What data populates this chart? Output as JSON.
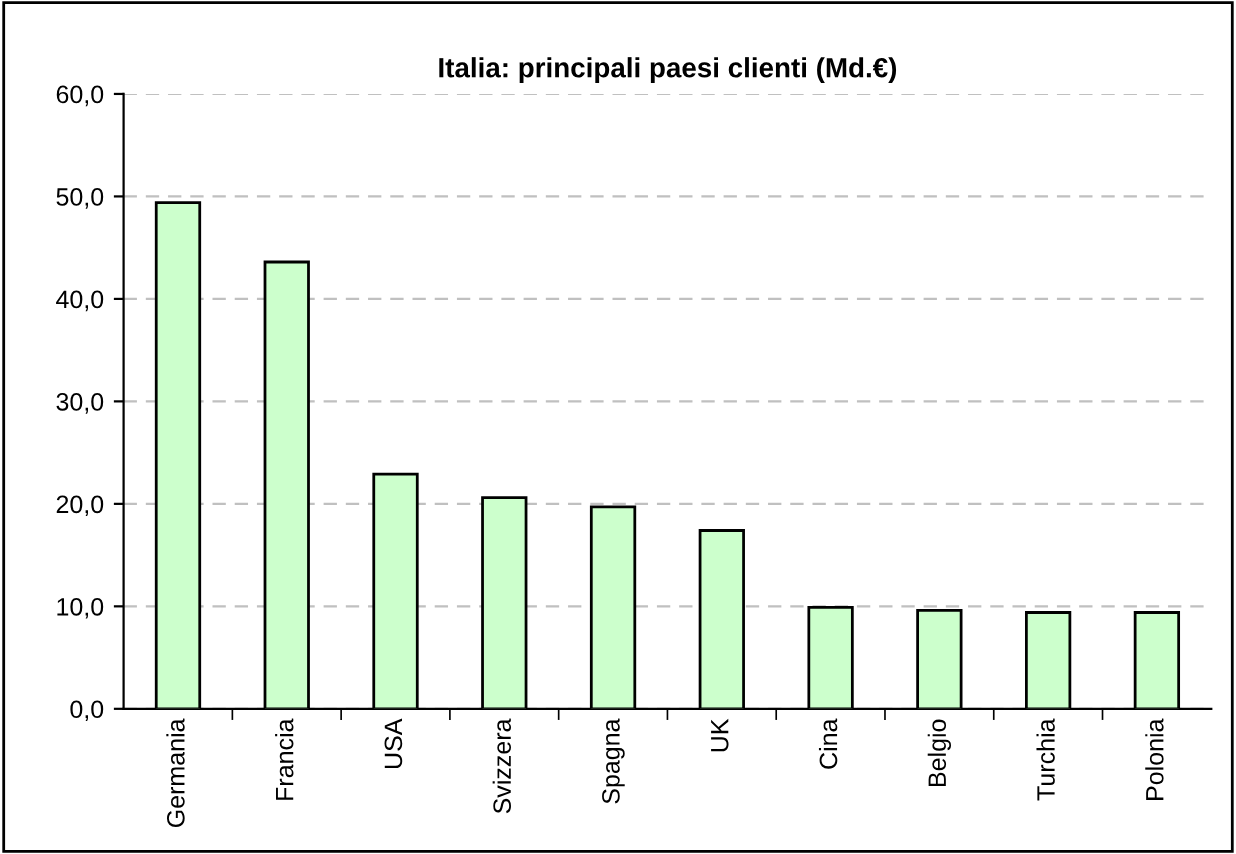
{
  "chart_data": {
    "type": "bar",
    "title": "Italia: principali paesi clienti (Md.€)",
    "categories": [
      "Germania",
      "Francia",
      "USA",
      "Svizzera",
      "Spagna",
      "UK",
      "Cina",
      "Belgio",
      "Turchia",
      "Polonia"
    ],
    "values": [
      49.4,
      43.6,
      22.9,
      20.6,
      19.7,
      17.4,
      9.9,
      9.6,
      9.4,
      9.4
    ],
    "color": "#ccffcc",
    "ylim": [
      0,
      60
    ],
    "yticks": [
      {
        "value": 0,
        "label": "0,0"
      },
      {
        "value": 10,
        "label": "10,0"
      },
      {
        "value": 20,
        "label": "20,0"
      },
      {
        "value": 30,
        "label": "30,0"
      },
      {
        "value": 40,
        "label": "40,0"
      },
      {
        "value": 50,
        "label": "50,0"
      },
      {
        "value": 60,
        "label": "60,0"
      }
    ],
    "grid": "y"
  }
}
